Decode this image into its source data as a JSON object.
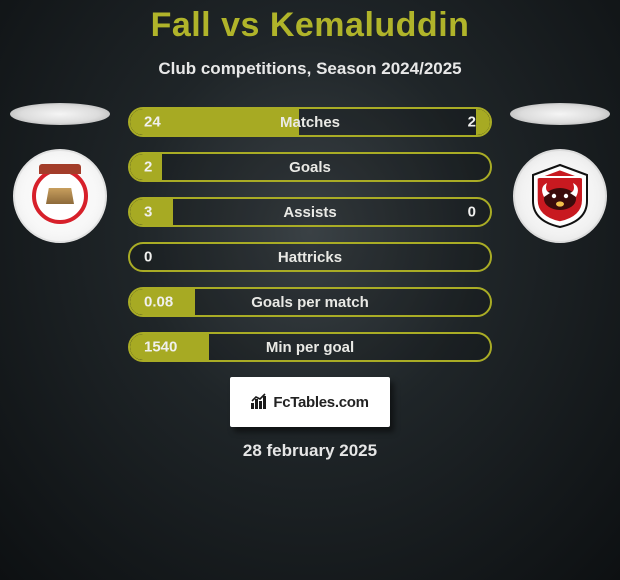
{
  "title": "Fall vs Kemaluddin",
  "subtitle": "Club competitions, Season 2024/2025",
  "date": "28 february 2025",
  "branding_text": "FcTables.com",
  "clubs": {
    "left_name": "psm-makassar",
    "right_name": "madura-united"
  },
  "colors": {
    "accent": "#a9ac25",
    "bar_fill": "#a7aa23",
    "title_color": "#b0b42a",
    "text_light": "#e8e8e8",
    "row_value_color": "#f0f0ee",
    "background_outer": "#0d1012",
    "branding_bg": "#ffffff"
  },
  "rows": [
    {
      "key": "matches",
      "label": "Matches",
      "left": "24",
      "right": "2",
      "left_pct": 47,
      "right_pct": 4
    },
    {
      "key": "goals",
      "label": "Goals",
      "left": "2",
      "right": "",
      "left_pct": 9,
      "right_pct": 0
    },
    {
      "key": "assists",
      "label": "Assists",
      "left": "3",
      "right": "0",
      "left_pct": 12,
      "right_pct": 0
    },
    {
      "key": "hattricks",
      "label": "Hattricks",
      "left": "0",
      "right": "",
      "left_pct": 0,
      "right_pct": 0
    },
    {
      "key": "goals_per_match",
      "label": "Goals per match",
      "left": "0.08",
      "right": "",
      "left_pct": 18,
      "right_pct": 0
    },
    {
      "key": "min_per_goal",
      "label": "Min per goal",
      "left": "1540",
      "right": "",
      "left_pct": 22,
      "right_pct": 0
    }
  ]
}
